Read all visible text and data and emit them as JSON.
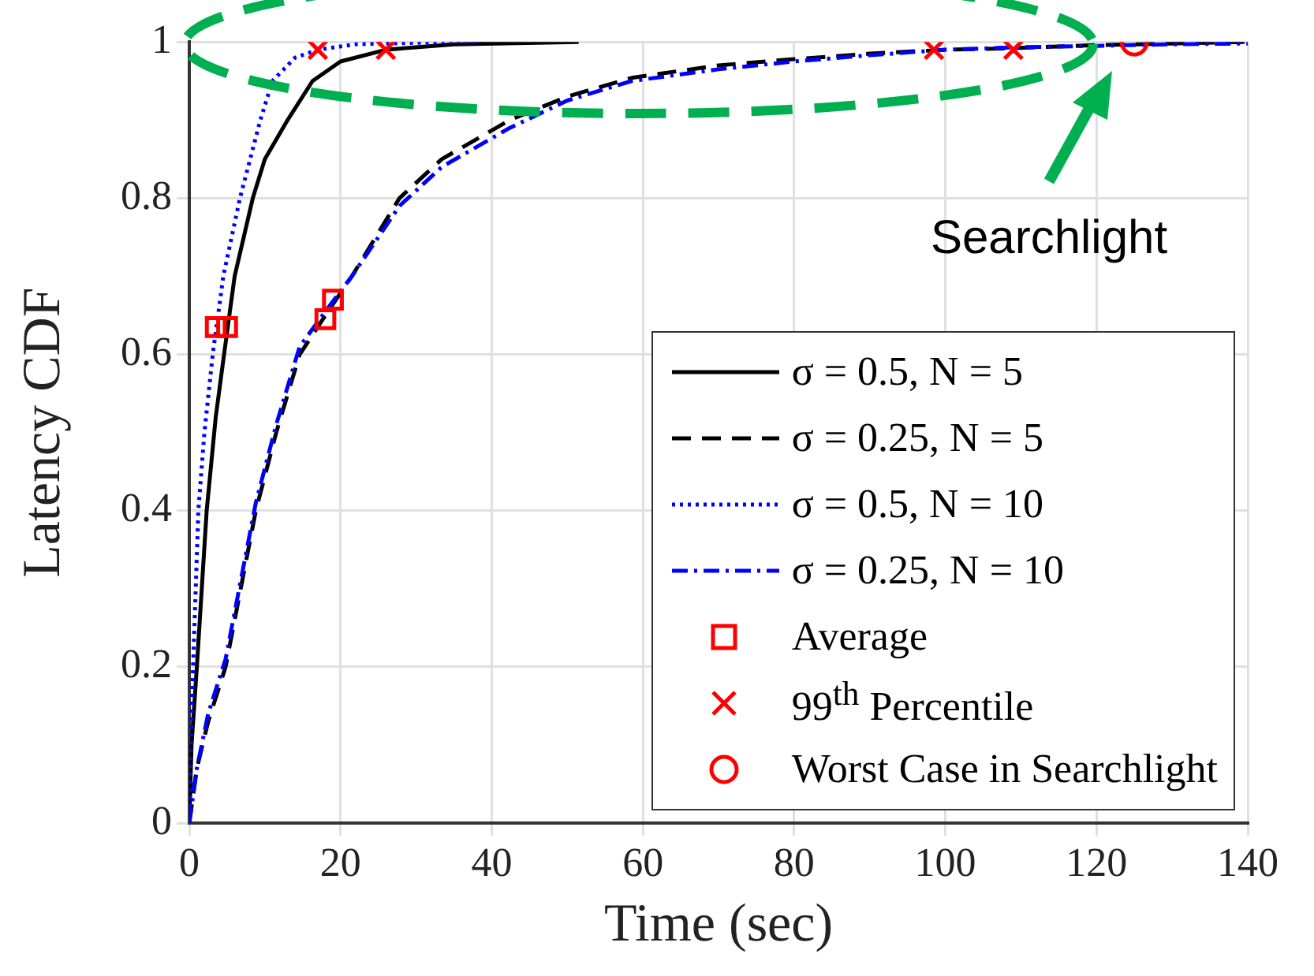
{
  "chart_data": {
    "type": "line",
    "xlabel": "Time (sec)",
    "ylabel": "Latency CDF",
    "xlim": [
      0,
      140
    ],
    "xticks": [
      0,
      20,
      40,
      60,
      80,
      100,
      120,
      140
    ],
    "ylim": [
      0,
      1
    ],
    "yticks": [
      0,
      0.2,
      0.4,
      0.6,
      0.8,
      1
    ],
    "grid": true,
    "legend": "bottom right",
    "marker": "none",
    "annotations": [
      "Searchlight"
    ],
    "series": [
      {
        "name": "σ = 0.5, N = 5",
        "color": "#000000",
        "line_style": "solid",
        "x": [
          0,
          0.3,
          1,
          2.3,
          3.5,
          4.6,
          6,
          8.4,
          10,
          13,
          16.3,
          20,
          26,
          35,
          51.5
        ],
        "values": [
          0,
          0.1,
          0.2,
          0.4,
          0.52,
          0.6,
          0.7,
          0.8,
          0.85,
          0.9,
          0.95,
          0.975,
          0.99,
          0.997,
          1
        ]
      },
      {
        "name": "σ = 0.25, N = 5",
        "color": "#000000",
        "line_style": "dashed",
        "x": [
          0,
          1,
          2.5,
          4.8,
          8.8,
          11.5,
          14.6,
          18,
          21.5,
          27.8,
          33.4,
          42.4,
          50,
          58.5,
          70,
          80,
          90,
          100,
          109,
          120,
          130,
          140
        ],
        "values": [
          0,
          0.07,
          0.13,
          0.2,
          0.4,
          0.5,
          0.6,
          0.65,
          0.7,
          0.8,
          0.85,
          0.9,
          0.93,
          0.954,
          0.97,
          0.978,
          0.985,
          0.99,
          0.992,
          0.996,
          0.998,
          1
        ]
      },
      {
        "name": "σ = 0.5, N = 10",
        "color": "#0000ff",
        "line_style": "dotted",
        "x": [
          0,
          0.2,
          0.5,
          1.2,
          2,
          3.1,
          4.5,
          6.7,
          9.4,
          11,
          14,
          17,
          22,
          30,
          38
        ],
        "values": [
          0,
          0.1,
          0.2,
          0.4,
          0.5,
          0.6,
          0.7,
          0.8,
          0.9,
          0.95,
          0.98,
          0.99,
          0.997,
          0.999,
          1
        ]
      },
      {
        "name": "σ = 0.25, N = 10",
        "color": "#0000ff",
        "line_style": "dashdot",
        "x": [
          0,
          1,
          2.5,
          4.8,
          8.8,
          11.5,
          14.6,
          18,
          21.5,
          27.8,
          33.4,
          42.4,
          50,
          58.5,
          70,
          80,
          90,
          100,
          109,
          120,
          130,
          140
        ],
        "values": [
          0,
          0.07,
          0.14,
          0.21,
          0.41,
          0.51,
          0.61,
          0.655,
          0.7,
          0.79,
          0.84,
          0.89,
          0.925,
          0.95,
          0.965,
          0.975,
          0.983,
          0.99,
          0.993,
          0.995,
          0.997,
          0.998
        ]
      },
      {
        "name": "Average",
        "type": "scatter",
        "marker": "square",
        "color": "#ff0000",
        "x": [
          3.5,
          5,
          18,
          19
        ],
        "values": [
          0.635,
          0.635,
          0.645,
          0.67
        ]
      },
      {
        "name": "99$^{th}$ Percentile",
        "type": "scatter",
        "marker": "cross",
        "color": "#ff0000",
        "x": [
          17,
          26,
          98.5,
          109
        ],
        "values": [
          0.99,
          0.99,
          0.99,
          0.99
        ]
      },
      {
        "name": "Worst Case in Searchlight",
        "type": "scatter",
        "marker": "circle",
        "color": "#ff0000",
        "x": [
          125
        ],
        "values": [
          1
        ]
      }
    ]
  }
}
